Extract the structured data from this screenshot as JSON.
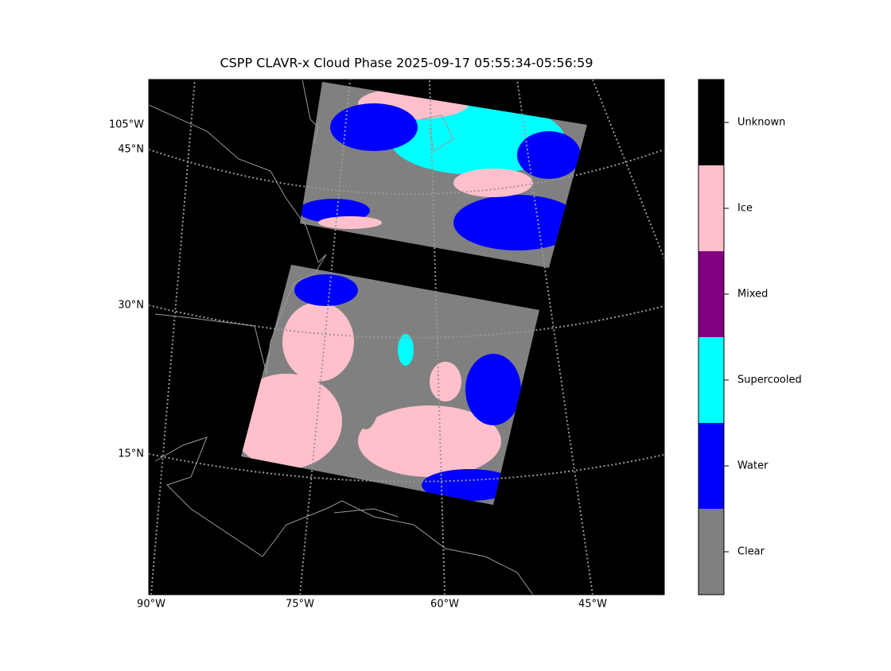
{
  "title": "CSPP CLAVR-x Cloud Phase 2025-09-17 05:55:34-05:56:59",
  "latitude_labels": [
    "45°N",
    "30°N",
    "15°N"
  ],
  "longitude_labels_left": [
    "105°W"
  ],
  "longitude_labels_bottom": [
    "90°W",
    "75°W",
    "60°W",
    "45°W"
  ],
  "colorbar": {
    "items": [
      {
        "label": "Unknown",
        "color": "#000000"
      },
      {
        "label": "Ice",
        "color": "#ffc0cb"
      },
      {
        "label": "Mixed",
        "color": "#800080"
      },
      {
        "label": "Supercooled",
        "color": "#00ffff"
      },
      {
        "label": "Water",
        "color": "#0000ff"
      },
      {
        "label": "Clear",
        "color": "#808080"
      }
    ]
  }
}
